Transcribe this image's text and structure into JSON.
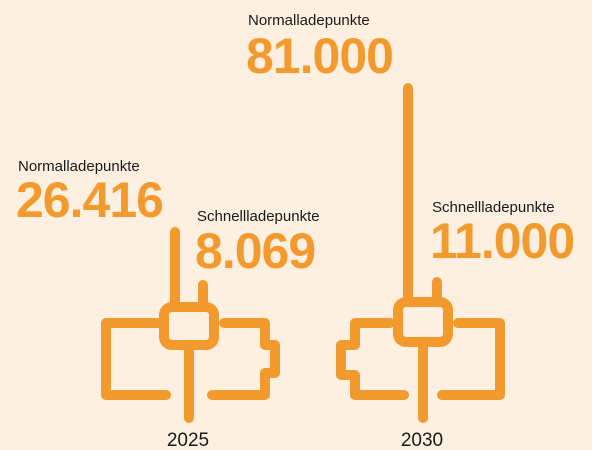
{
  "groups": [
    {
      "year": "2025",
      "items": [
        {
          "label": "Normalladepunkte",
          "value": "26.416"
        },
        {
          "label": "Schnellladepunkte",
          "value": "8.069"
        }
      ]
    },
    {
      "year": "2030",
      "items": [
        {
          "label": "Normalladepunkte",
          "value": "81.000"
        },
        {
          "label": "Schnellladepunkte",
          "value": "11.000"
        }
      ]
    }
  ]
}
